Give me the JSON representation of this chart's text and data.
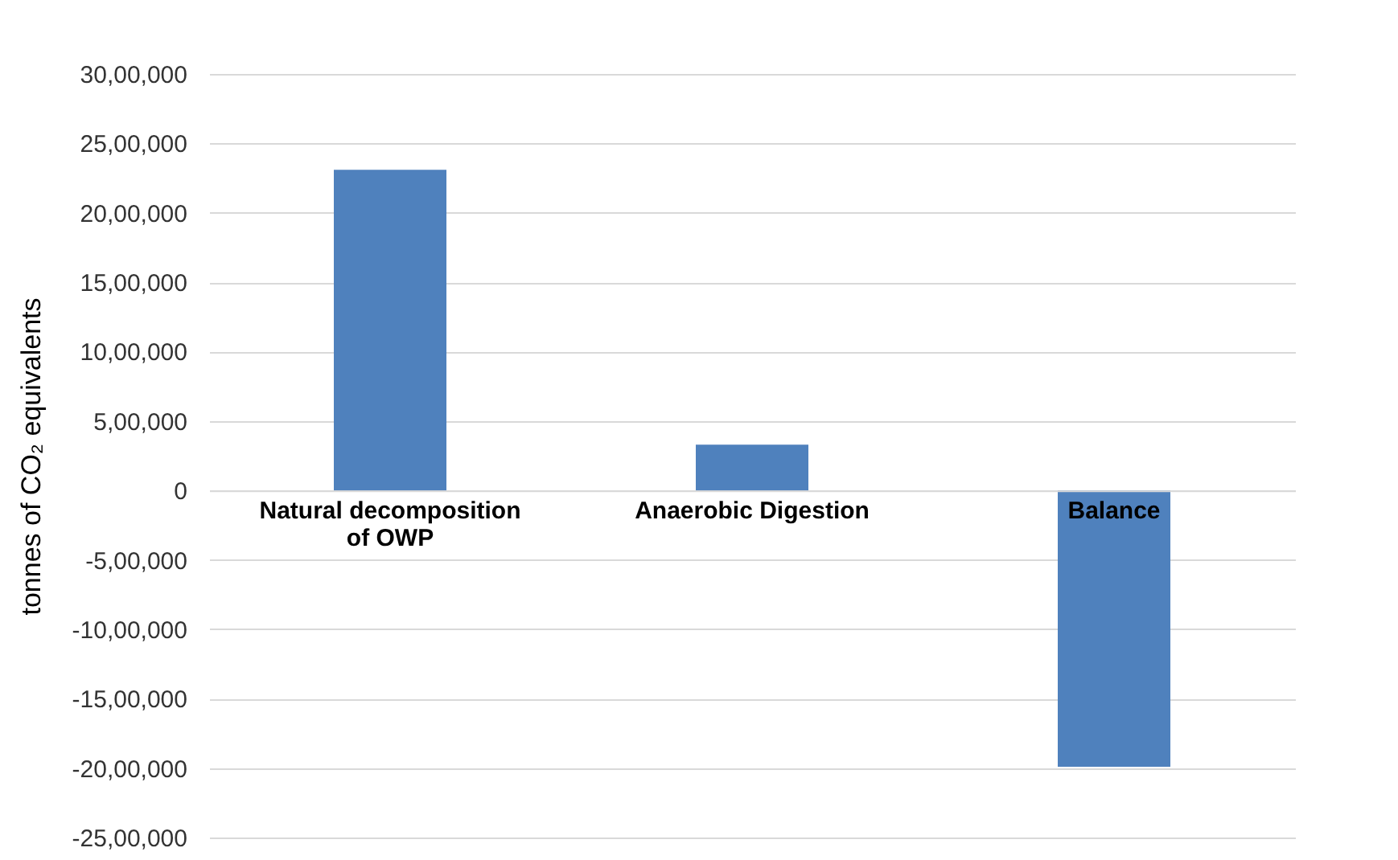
{
  "chart_data": {
    "type": "bar",
    "ylabel": "tonnes of CO₂ equivalents",
    "categories": [
      "Natural decomposition of OWP",
      "Anaerobic Digestion",
      "Balance"
    ],
    "values": [
      2310000,
      330000,
      -1990000
    ],
    "color": "#4f81bd",
    "ylim": [
      -2500000,
      3000000
    ],
    "yticks": [
      {
        "value": -2500000,
        "label": "-25,00,000"
      },
      {
        "value": -2000000,
        "label": "-20,00,000"
      },
      {
        "value": -1500000,
        "label": "-15,00,000"
      },
      {
        "value": -1000000,
        "label": "-10,00,000"
      },
      {
        "value": -500000,
        "label": "-5,00,000"
      },
      0,
      {
        "value": 500000,
        "label": "5,00,000"
      },
      {
        "value": 1000000,
        "label": "10,00,000"
      },
      {
        "value": 1500000,
        "label": "15,00,000"
      },
      {
        "value": 2000000,
        "label": "20,00,000"
      },
      {
        "value": 2500000,
        "label": "25,00,000"
      },
      {
        "value": 3000000,
        "label": "30,00,000"
      }
    ],
    "grid": "y"
  }
}
